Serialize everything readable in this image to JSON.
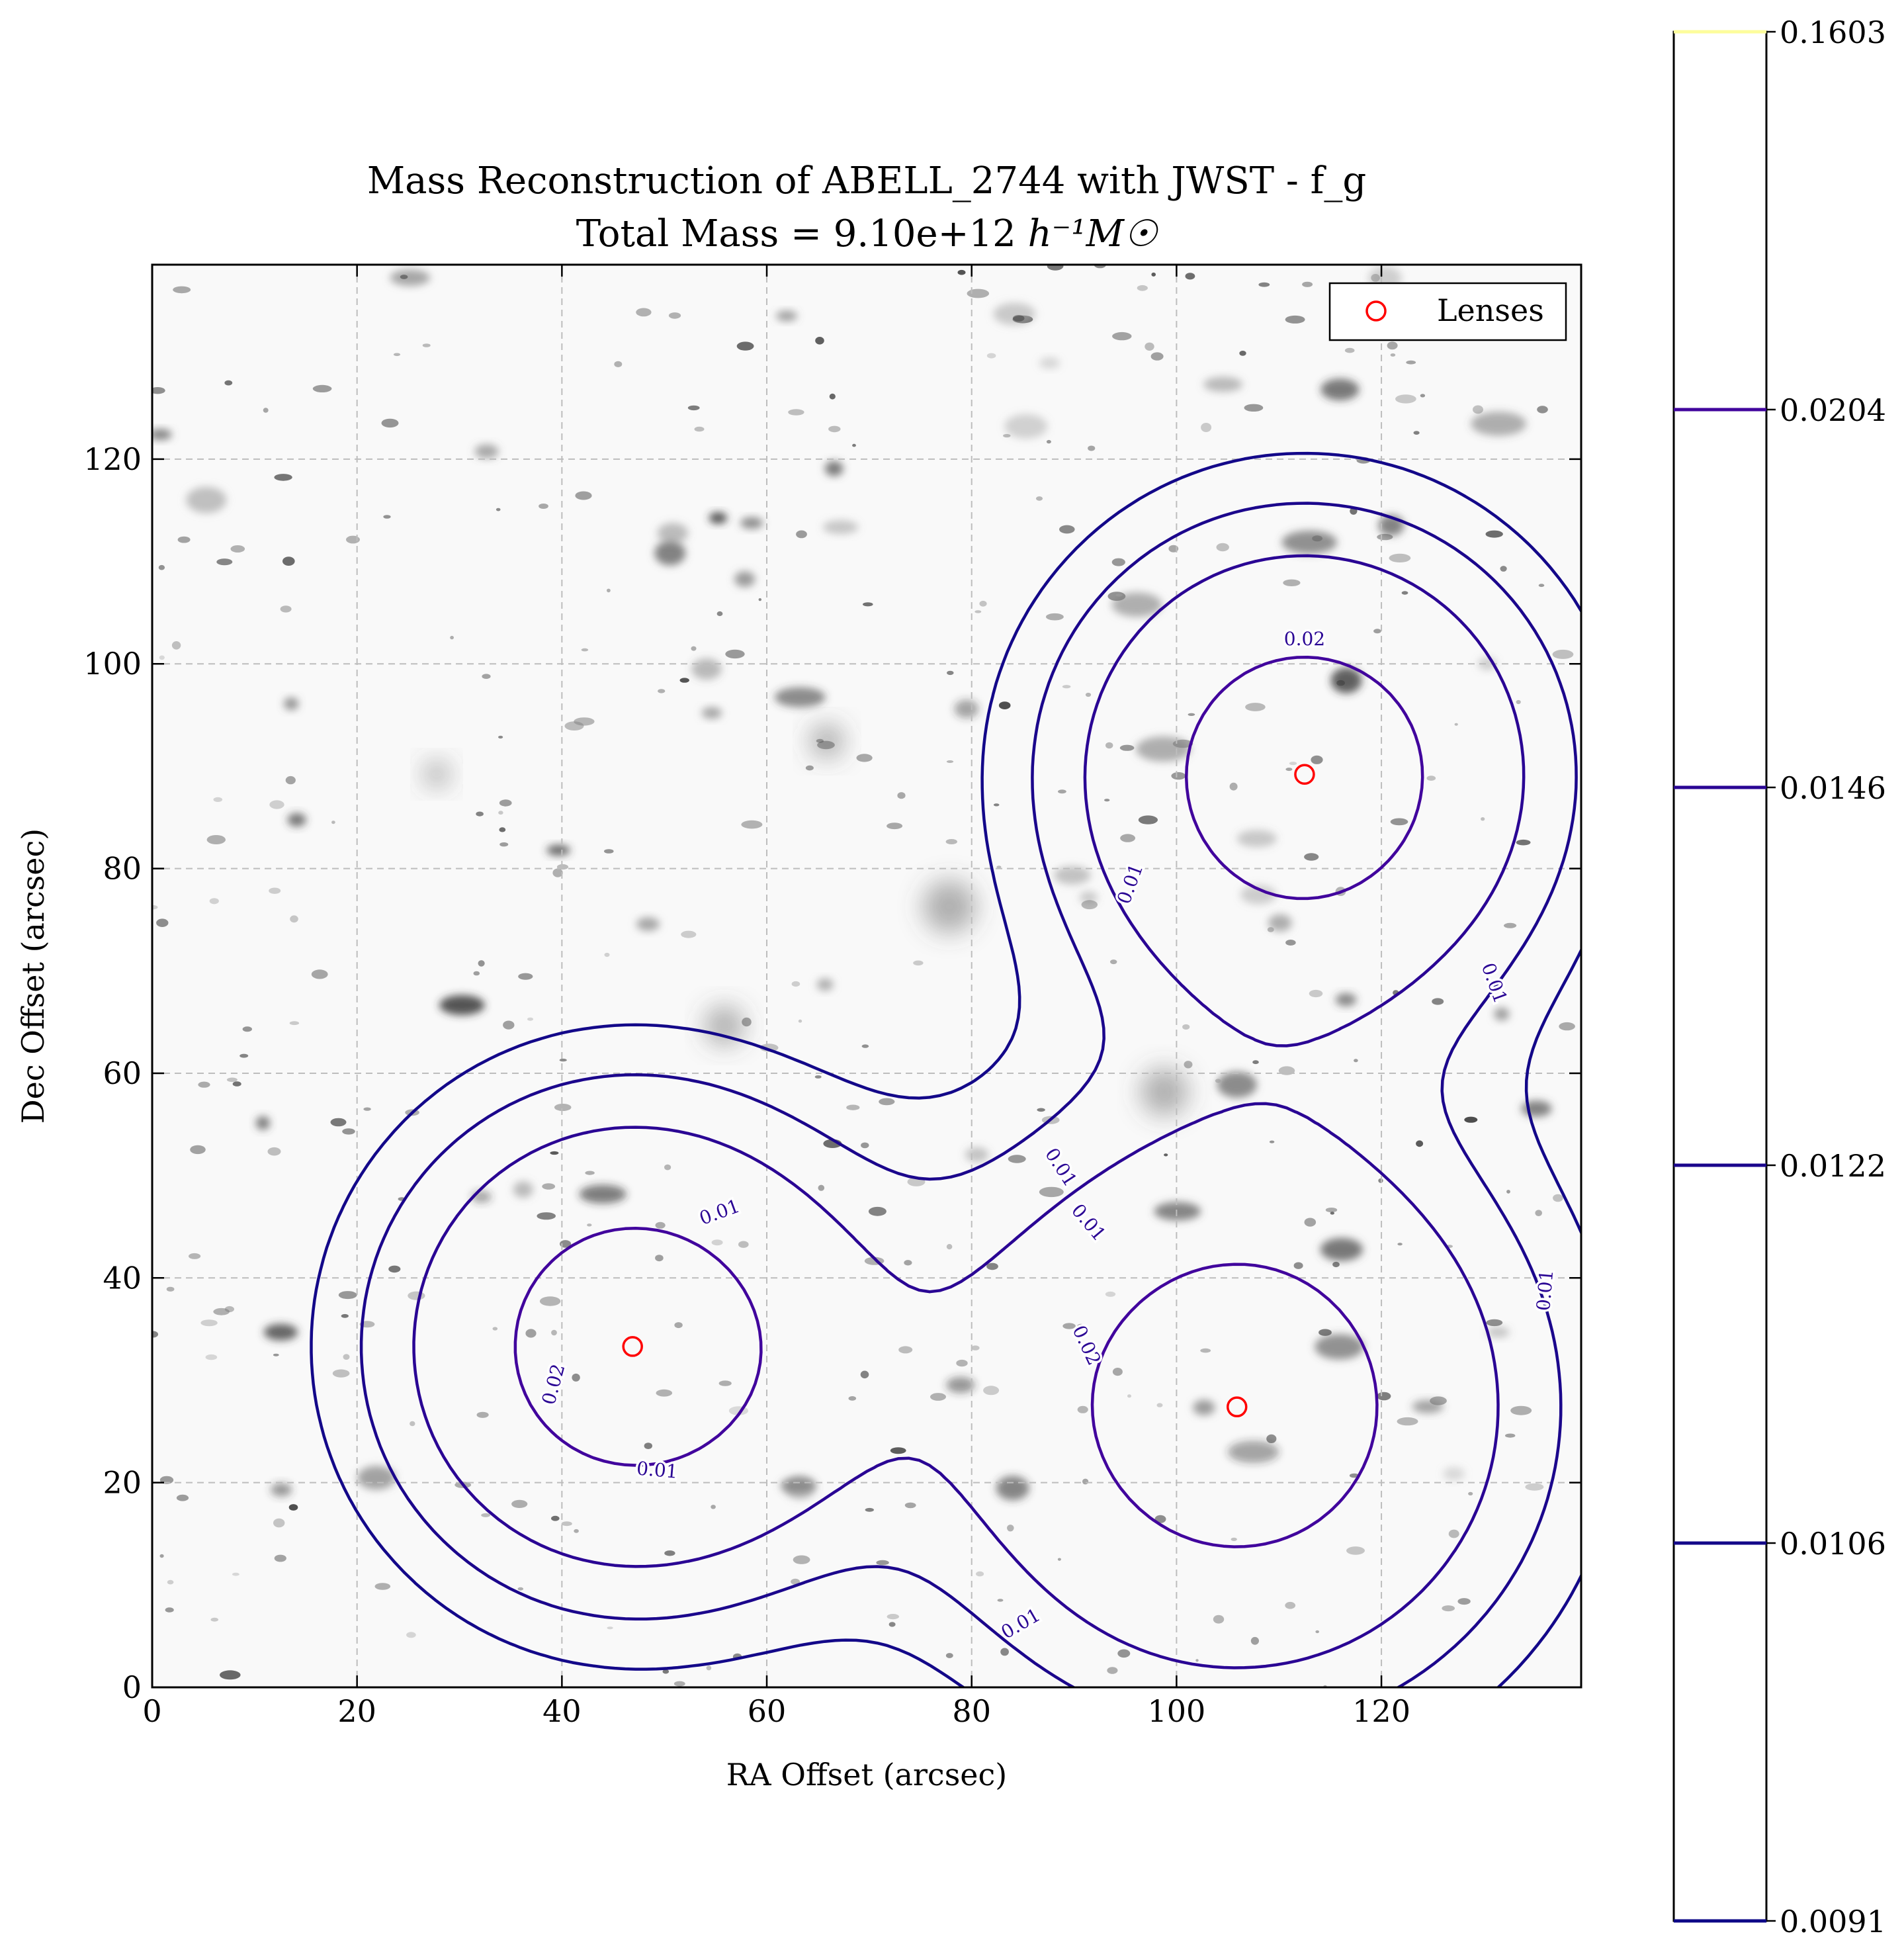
{
  "chart_data": {
    "type": "contour",
    "title": "Mass Reconstruction of ABELL_2744 with JWST - f_g",
    "subtitle_prefix": "Total Mass = 9.10e+12 ",
    "subtitle_units": "h⁻¹M☉",
    "xlabel": "RA Offset (arcsec)",
    "ylabel": "Dec Offset (arcsec)",
    "xlim": [
      0,
      139.5
    ],
    "ylim": [
      0,
      139
    ],
    "xticks": [
      "0",
      "20",
      "40",
      "60",
      "80",
      "100",
      "120"
    ],
    "yticks": [
      "0",
      "20",
      "40",
      "60",
      "80",
      "100",
      "120"
    ],
    "grid": true,
    "background": "grayscale JWST image of ABELL_2744 field",
    "legend": {
      "placement": "top-right",
      "entries": [
        {
          "label": "Lenses",
          "marker": "open-circle",
          "color": "#ff0000"
        }
      ]
    },
    "lenses": [
      {
        "x": 46.9,
        "y": 33.3
      },
      {
        "x": 105.9,
        "y": 27.4
      },
      {
        "x": 112.5,
        "y": 89.2
      }
    ],
    "contour_levels": [
      0.0106,
      0.0122,
      0.0146,
      0.0204
    ],
    "contour_labels": [
      {
        "text": "0.02",
        "x": 112.5,
        "y": 102.4,
        "angle": 0
      },
      {
        "text": "0.01",
        "x": 95.5,
        "y": 78.5,
        "angle": 70
      },
      {
        "text": "0.01",
        "x": 131.0,
        "y": 68.8,
        "angle": -70
      },
      {
        "text": "0.01",
        "x": 55.4,
        "y": 46.4,
        "angle": 20
      },
      {
        "text": "0.01",
        "x": 88.7,
        "y": 50.8,
        "angle": -57
      },
      {
        "text": "0.01",
        "x": 91.4,
        "y": 45.4,
        "angle": -50
      },
      {
        "text": "0.01",
        "x": 136.0,
        "y": 38.8,
        "angle": 85
      },
      {
        "text": "0.02",
        "x": 91.2,
        "y": 33.4,
        "angle": -65
      },
      {
        "text": "0.02",
        "x": 39.2,
        "y": 29.6,
        "angle": 75
      },
      {
        "text": "0.01",
        "x": 49.3,
        "y": 21.2,
        "angle": -5
      },
      {
        "text": "0.01",
        "x": 84.8,
        "y": 6.2,
        "angle": 30
      }
    ],
    "colorbar": {
      "min": "0.0091",
      "max": "0.1603",
      "ticks": [
        "0.0091",
        "0.0106",
        "0.0122",
        "0.0146",
        "0.0204",
        "0.1603"
      ],
      "colors": [
        "#0d0887",
        "#130889",
        "#1b068c",
        "#2a0594",
        "#41049d",
        "#fdfd9c"
      ]
    }
  }
}
